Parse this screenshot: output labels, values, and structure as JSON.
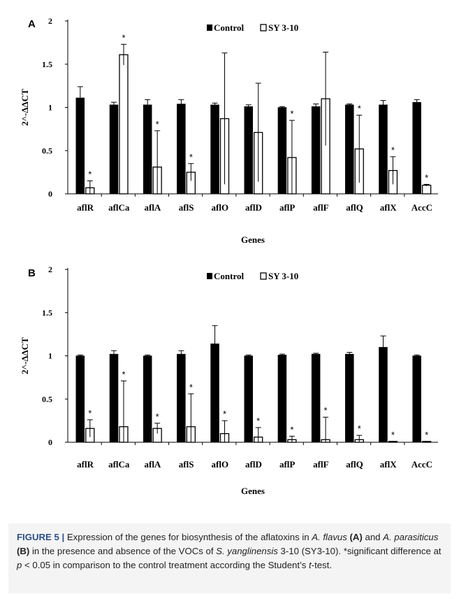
{
  "chart_data": [
    {
      "type": "bar",
      "panel_label": "A",
      "categories": [
        "aflR",
        "aflCa",
        "aflA",
        "aflS",
        "aflO",
        "aflD",
        "aflP",
        "aflF",
        "aflQ",
        "aflX",
        "AccC"
      ],
      "series": [
        {
          "name": "Control",
          "values": [
            1.11,
            1.03,
            1.03,
            1.04,
            1.03,
            1.01,
            1.0,
            1.01,
            1.03,
            1.03,
            1.06
          ],
          "errors": [
            0.13,
            0.03,
            0.06,
            0.05,
            0.02,
            0.02,
            0.01,
            0.03,
            0.01,
            0.05,
            0.03
          ],
          "color": "#000000"
        },
        {
          "name": "SY 3-10",
          "values": [
            0.07,
            1.61,
            0.31,
            0.25,
            0.87,
            0.71,
            0.42,
            1.1,
            0.52,
            0.27,
            0.1
          ],
          "errors": [
            0.08,
            0.12,
            0.42,
            0.1,
            0.76,
            0.57,
            0.43,
            0.54,
            0.39,
            0.16,
            0.01
          ],
          "color": "#ffffff"
        }
      ],
      "significance": [
        "*",
        "*",
        "*",
        "*",
        "",
        "",
        "*",
        "",
        "*",
        "*",
        "*"
      ],
      "xlabel": "Genes",
      "ylabel": "2^-ΔΔCT",
      "ylim": [
        0,
        2
      ],
      "yticks": [
        "0",
        "0.5",
        "1",
        "1.5",
        "2"
      ],
      "legend_position": "top-center",
      "grid": false
    },
    {
      "type": "bar",
      "panel_label": "B",
      "categories": [
        "aflR",
        "aflCa",
        "aflA",
        "aflS",
        "aflO",
        "aflD",
        "aflP",
        "aflF",
        "aflQ",
        "aflX",
        "AccC"
      ],
      "series": [
        {
          "name": "Control",
          "values": [
            1.0,
            1.02,
            1.0,
            1.02,
            1.14,
            1.0,
            1.01,
            1.02,
            1.02,
            1.1,
            1.0
          ],
          "errors": [
            0.01,
            0.04,
            0.01,
            0.04,
            0.21,
            0.01,
            0.01,
            0.01,
            0.02,
            0.13,
            0.01
          ],
          "color": "#000000"
        },
        {
          "name": "SY 3-10",
          "values": [
            0.16,
            0.18,
            0.16,
            0.18,
            0.1,
            0.06,
            0.03,
            0.03,
            0.03,
            0.01,
            0.01
          ],
          "errors": [
            0.1,
            0.53,
            0.06,
            0.38,
            0.15,
            0.11,
            0.04,
            0.26,
            0.05,
            0.0,
            0.0
          ],
          "color": "#ffffff"
        }
      ],
      "significance": [
        "*",
        "*",
        "*",
        "*",
        "*",
        "*",
        "*",
        "*",
        "*",
        "*",
        "*"
      ],
      "xlabel": "Genes",
      "ylabel": "2^-ΔΔCT",
      "ylim": [
        0,
        2
      ],
      "yticks": [
        "0",
        "0.5",
        "1",
        "1.5",
        "2"
      ],
      "legend_position": "top-center",
      "grid": false
    }
  ],
  "caption": {
    "label": "FIGURE 5 |",
    "t1": " Expression of the genes for biosynthesis of the aflatoxins in ",
    "sp1": "A. flavus",
    "p1": "(A)",
    "t2": " and ",
    "sp2": "A. parasiticus",
    "p2": "(B)",
    "t3": " in the presence and absence of the VOCs of ",
    "sp3": "S. yanglinensis",
    "t4": " 3-10 (SY3-10). *significant difference at ",
    "pvar": "p",
    "t5": " < 0.05 in comparison to the control treatment according the Student’s ",
    "tvar": "t",
    "t6": "-test."
  }
}
